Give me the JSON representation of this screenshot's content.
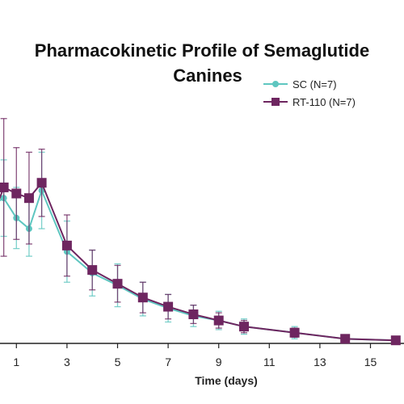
{
  "chart_data": {
    "type": "line",
    "title_line1": "Pharmacokinetic Profile of Semaglutide",
    "title_line2": "Canines",
    "xlabel": "Time (days)",
    "ylabel": "",
    "x_ticks": [
      1,
      3,
      5,
      7,
      9,
      11,
      13,
      15
    ],
    "xlim": [
      0,
      16
    ],
    "ylim": [
      0,
      14
    ],
    "grid": false,
    "legend_position": "top-right",
    "series": [
      {
        "name": "SC (N=7)",
        "color": "#5ec6c0",
        "marker": "circle",
        "points": [
          {
            "x": 0,
            "y": 9.0,
            "err": 2.0
          },
          {
            "x": 0.5,
            "y": 9.5,
            "err": 2.5
          },
          {
            "x": 1,
            "y": 8.2,
            "err": 2.0
          },
          {
            "x": 1.5,
            "y": 7.5,
            "err": 1.8
          },
          {
            "x": 2,
            "y": 10.0,
            "err": 2.5
          },
          {
            "x": 3,
            "y": 6.0,
            "err": 2.0
          },
          {
            "x": 4,
            "y": 4.6,
            "err": 1.5
          },
          {
            "x": 5,
            "y": 3.8,
            "err": 1.4
          },
          {
            "x": 6,
            "y": 2.9,
            "err": 1.1
          },
          {
            "x": 7,
            "y": 2.3,
            "err": 0.9
          },
          {
            "x": 8,
            "y": 1.8,
            "err": 0.7
          },
          {
            "x": 9,
            "y": 1.5,
            "err": 0.6
          },
          {
            "x": 10,
            "y": 1.1,
            "err": 0.5
          },
          {
            "x": 12,
            "y": 0.7,
            "err": 0.4
          },
          {
            "x": 14,
            "y": 0.3,
            "err": 0.2
          },
          {
            "x": 16,
            "y": 0.2,
            "err": 0.2
          }
        ]
      },
      {
        "name": "RT-110 (N=7)",
        "color": "#6e2660",
        "marker": "square",
        "points": [
          {
            "x": 0,
            "y": 8.0,
            "err": 3.0
          },
          {
            "x": 0.5,
            "y": 10.2,
            "err": 4.5
          },
          {
            "x": 1,
            "y": 9.8,
            "err": 3.0
          },
          {
            "x": 1.5,
            "y": 9.5,
            "err": 3.0
          },
          {
            "x": 2,
            "y": 10.5,
            "err": 2.2
          },
          {
            "x": 3,
            "y": 6.4,
            "err": 2.0
          },
          {
            "x": 4,
            "y": 4.8,
            "err": 1.3
          },
          {
            "x": 5,
            "y": 3.9,
            "err": 1.2
          },
          {
            "x": 6,
            "y": 3.0,
            "err": 1.0
          },
          {
            "x": 7,
            "y": 2.4,
            "err": 0.8
          },
          {
            "x": 8,
            "y": 1.9,
            "err": 0.6
          },
          {
            "x": 9,
            "y": 1.5,
            "err": 0.5
          },
          {
            "x": 10,
            "y": 1.1,
            "err": 0.4
          },
          {
            "x": 12,
            "y": 0.7,
            "err": 0.3
          },
          {
            "x": 14,
            "y": 0.3,
            "err": 0.2
          },
          {
            "x": 16,
            "y": 0.2,
            "err": 0.2
          }
        ]
      }
    ]
  }
}
